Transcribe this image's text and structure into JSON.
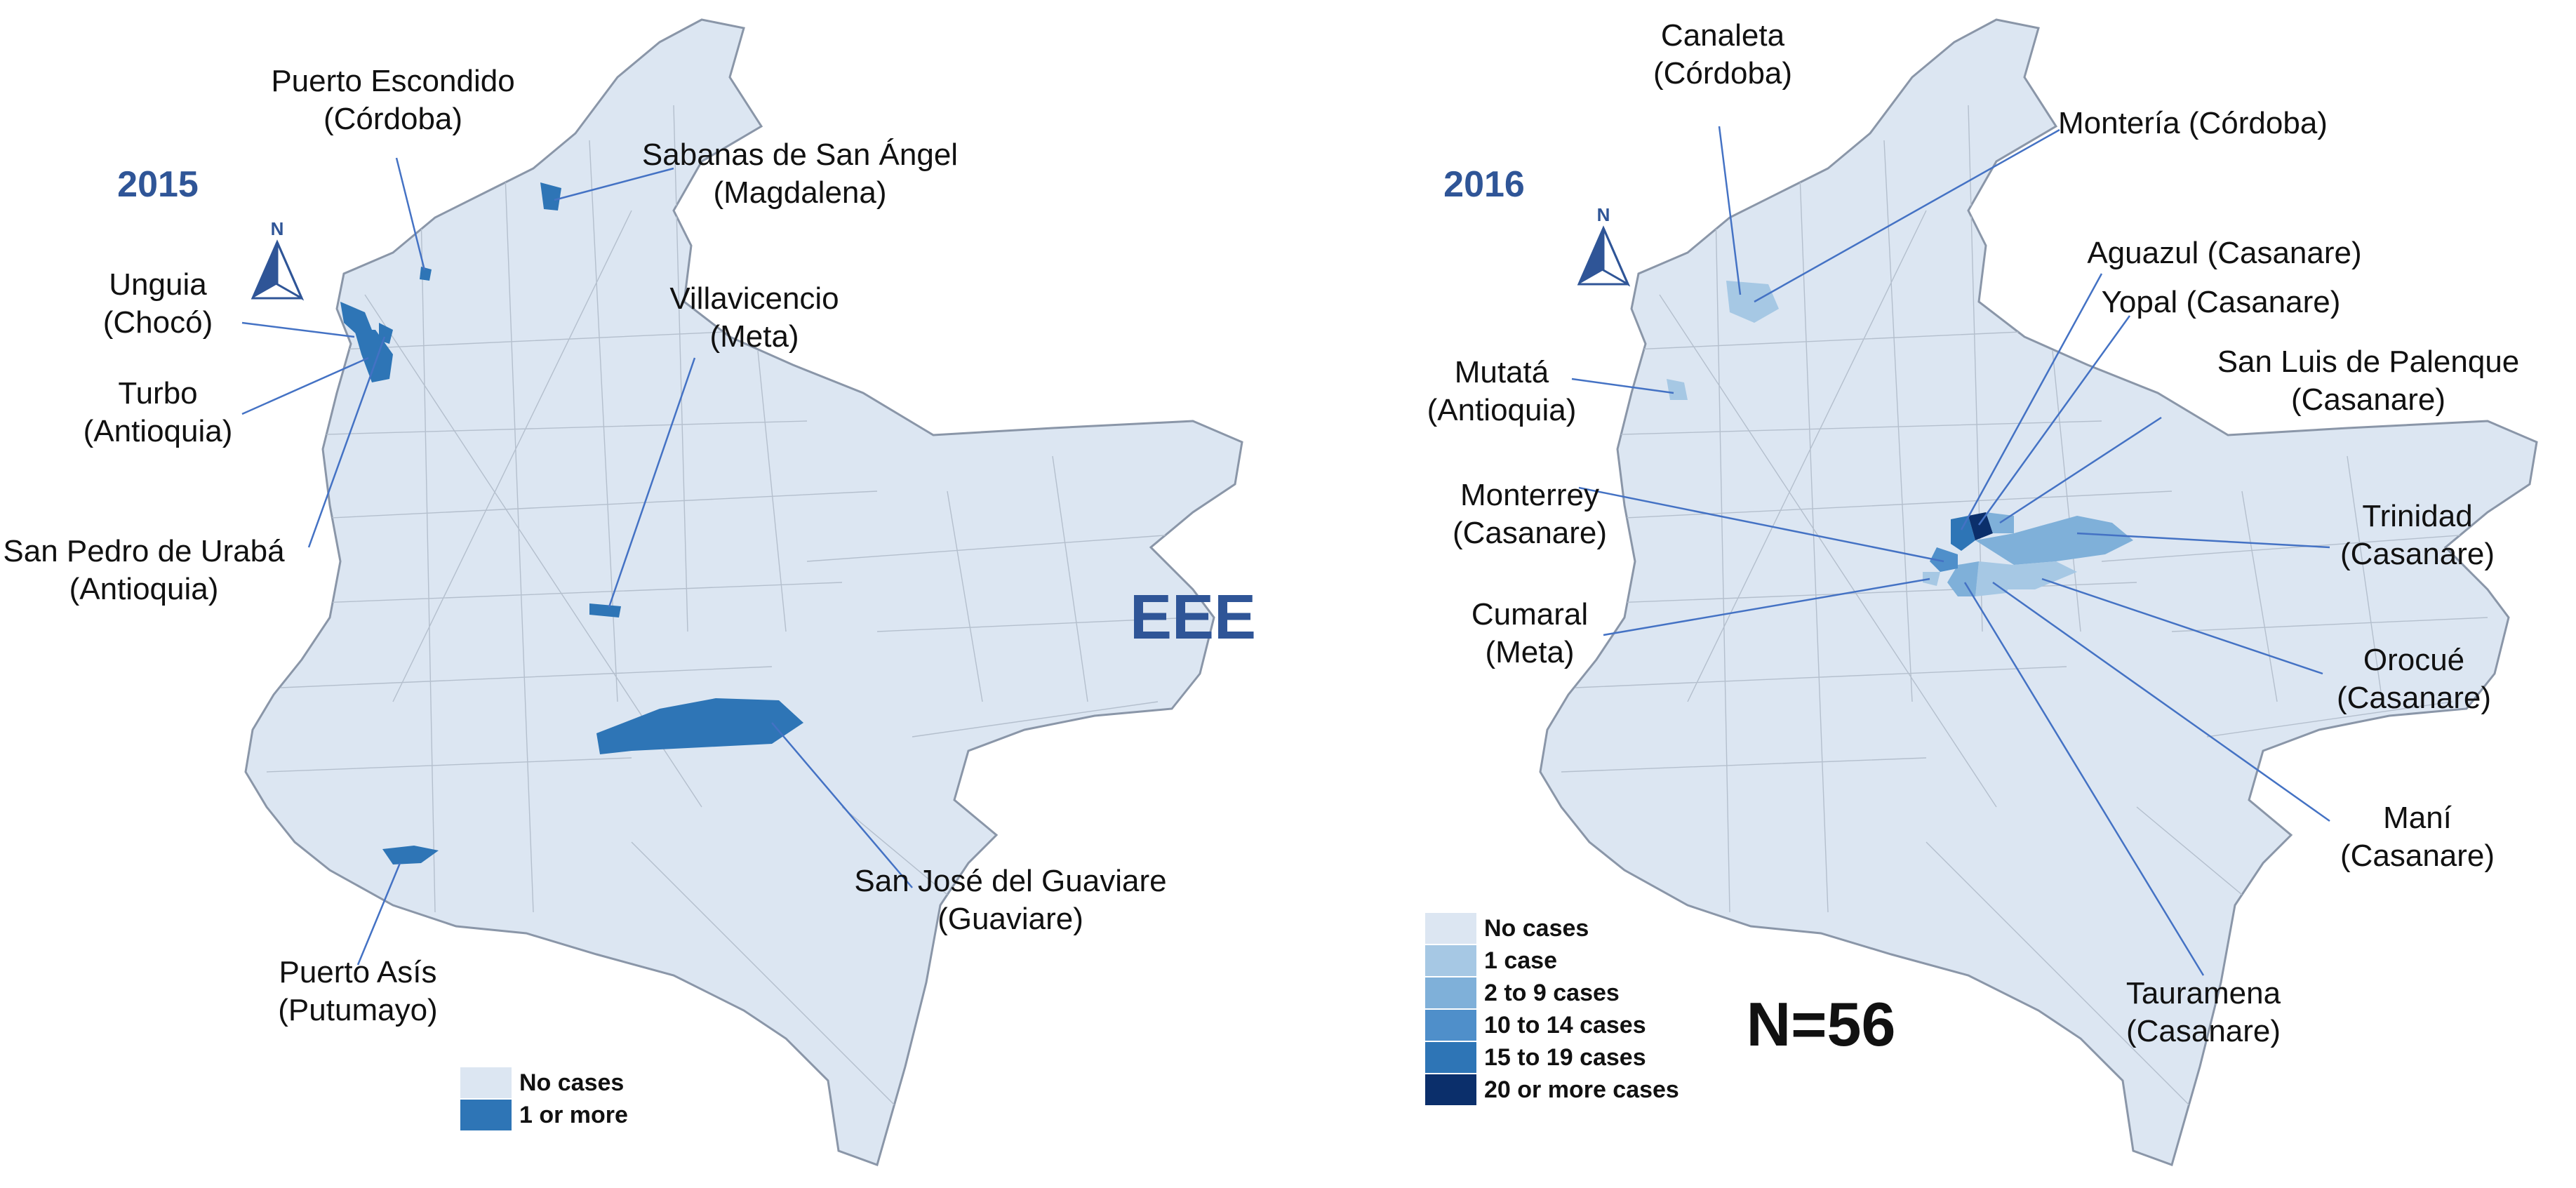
{
  "colors": {
    "land": "#dce6f2",
    "border": "#8a96a8",
    "year_text": "#2f5597",
    "leader": "#4472c4",
    "scale": [
      "#dce6f2",
      "#a6c8e4",
      "#7fb0d9",
      "#4f8fca",
      "#2e75b6",
      "#0b2f6b"
    ],
    "binary_case": "#2e75b6"
  },
  "left_map": {
    "year": "2015",
    "north_label": "N",
    "disease": "EEE",
    "legend": [
      {
        "label": "No cases",
        "color": "#dce6f2"
      },
      {
        "label": "1 or more",
        "color": "#2e75b6"
      }
    ],
    "annotations": [
      {
        "id": "puerto-escondido",
        "lines": [
          "Puerto Escondido",
          "(Córdoba)"
        ]
      },
      {
        "id": "sabanas",
        "lines": [
          "Sabanas de San Ángel",
          "(Magdalena)"
        ]
      },
      {
        "id": "unguia",
        "lines": [
          "Unguia",
          "(Chocó)"
        ]
      },
      {
        "id": "turbo",
        "lines": [
          "Turbo",
          "(Antioquia)"
        ]
      },
      {
        "id": "villavicencio",
        "lines": [
          "Villavicencio",
          "(Meta)"
        ]
      },
      {
        "id": "san-pedro",
        "lines": [
          "San Pedro de Urabá",
          "(Antioquia)"
        ]
      },
      {
        "id": "san-jose",
        "lines": [
          "San José del Guaviare",
          "(Guaviare)"
        ]
      },
      {
        "id": "puerto-asis",
        "lines": [
          "Puerto Asís",
          "(Putumayo)"
        ]
      }
    ]
  },
  "right_map": {
    "year": "2016",
    "north_label": "N",
    "total": "N=56",
    "legend": [
      {
        "label": "No cases",
        "color": "#dce6f2"
      },
      {
        "label": "1 case",
        "color": "#a6c8e4"
      },
      {
        "label": "2 to 9 cases",
        "color": "#7fb0d9"
      },
      {
        "label": "10 to 14 cases",
        "color": "#4f8fca"
      },
      {
        "label": "15 to 19 cases",
        "color": "#2e75b6"
      },
      {
        "label": "20 or more cases",
        "color": "#0b2f6b"
      }
    ],
    "annotations": [
      {
        "id": "canaleta",
        "lines": [
          "Canaleta",
          "(Córdoba)"
        ]
      },
      {
        "id": "monteria",
        "lines": [
          "Montería (Córdoba)"
        ]
      },
      {
        "id": "aguazul",
        "lines": [
          "Aguazul (Casanare)"
        ]
      },
      {
        "id": "yopal",
        "lines": [
          "Yopal (Casanare)"
        ]
      },
      {
        "id": "mutata",
        "lines": [
          "Mutatá",
          "(Antioquia)"
        ]
      },
      {
        "id": "san-luis",
        "lines": [
          "San Luis de Palenque",
          "(Casanare)"
        ]
      },
      {
        "id": "monterrey",
        "lines": [
          "Monterrey",
          "(Casanare)"
        ]
      },
      {
        "id": "trinidad",
        "lines": [
          "Trinidad",
          "(Casanare)"
        ]
      },
      {
        "id": "cumaral",
        "lines": [
          "Cumaral",
          "(Meta)"
        ]
      },
      {
        "id": "orocue",
        "lines": [
          "Orocué",
          "(Casanare)"
        ]
      },
      {
        "id": "mani",
        "lines": [
          "Maní",
          "(Casanare)"
        ]
      },
      {
        "id": "tauramena",
        "lines": [
          "Tauramena",
          "(Casanare)"
        ]
      }
    ]
  }
}
